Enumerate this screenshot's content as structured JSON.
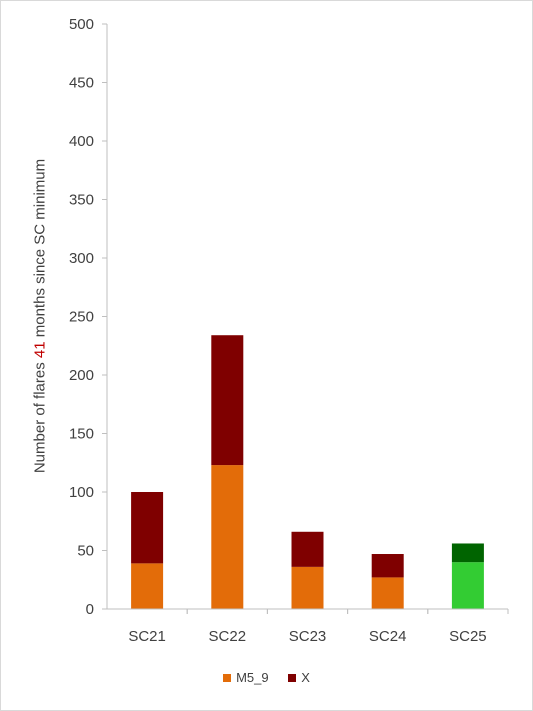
{
  "chart_data": {
    "type": "bar",
    "stacked": true,
    "categories": [
      "SC21",
      "SC22",
      "SC23",
      "SC24",
      "SC25"
    ],
    "series": [
      {
        "name": "M5_9",
        "values": [
          39,
          123,
          36,
          27,
          40
        ]
      },
      {
        "name": "X",
        "values": [
          61,
          111,
          30,
          20,
          16
        ]
      }
    ],
    "ylabel_parts": [
      "Number of flares ",
      "41",
      " months since SC minimum"
    ],
    "ylim": [
      0,
      500
    ],
    "yticks": [
      0,
      50,
      100,
      150,
      200,
      250,
      300,
      350,
      400,
      450,
      500
    ],
    "grid": false,
    "legend_position": "bottom",
    "colors": {
      "M5_9": "#e36c09",
      "X": "#7f0000",
      "highlight_M5_9": "#33cc33",
      "highlight_X": "#006400",
      "axis": "#bfbfbf",
      "text": "#404040",
      "label_highlight": "#c00000"
    },
    "highlight_category": "SC25"
  }
}
